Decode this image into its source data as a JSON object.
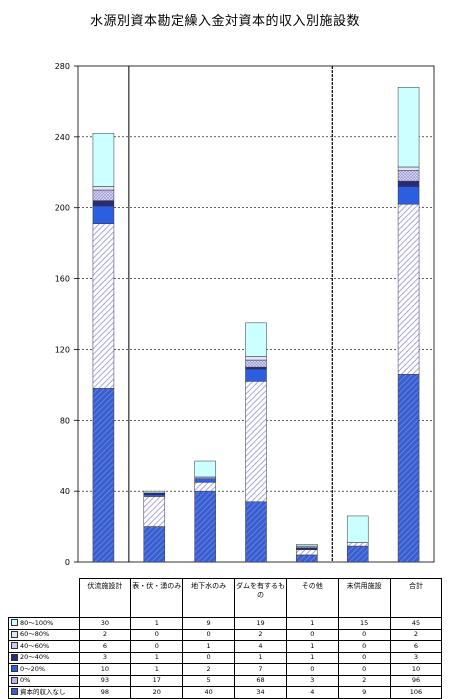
{
  "chart_data": {
    "type": "bar",
    "stacked": true,
    "title": "水源別資本勘定繰入金対資本的収入別施設数",
    "ylim": [
      0,
      280
    ],
    "yticks": [
      0,
      40,
      80,
      120,
      160,
      200,
      240,
      280
    ],
    "grid": true,
    "legend": "table-left",
    "categories": [
      "伏流施設計",
      "表・伏・湧のみ",
      "地下水のみ",
      "ダムを有するもの",
      "その他",
      "未供用施設",
      "合計"
    ],
    "series": [
      {
        "name": "資本的収入なし",
        "values": [
          98,
          20,
          40,
          34,
          4,
          9,
          106
        ],
        "color": "#3a5fcd",
        "fill": "hatch-dark"
      },
      {
        "name": "0%",
        "values": [
          93,
          17,
          5,
          68,
          3,
          2,
          96
        ],
        "color": "#b5b5e8",
        "fill": "hatch-light"
      },
      {
        "name": "0〜20%",
        "values": [
          10,
          1,
          2,
          7,
          0,
          0,
          10
        ],
        "color": "#2b5fe0",
        "fill": "solid"
      },
      {
        "name": "20〜40%",
        "values": [
          3,
          1,
          0,
          1,
          1,
          0,
          3
        ],
        "color": "#2a2a7a",
        "fill": "solid"
      },
      {
        "name": "40〜60%",
        "values": [
          6,
          0,
          1,
          4,
          1,
          0,
          6
        ],
        "color": "#ccccf2",
        "fill": "cross"
      },
      {
        "name": "60〜80%",
        "values": [
          2,
          0,
          0,
          2,
          0,
          0,
          2
        ],
        "color": "#e4e4f8",
        "fill": "solid"
      },
      {
        "name": "80〜100%",
        "values": [
          30,
          1,
          9,
          19,
          1,
          15,
          45
        ],
        "color": "#ccffff",
        "fill": "solid"
      }
    ]
  },
  "table_rows_order": [
    "80〜100%",
    "60〜80%",
    "40〜60%",
    "20〜40%",
    "0〜20%",
    "0%",
    "資本的収入なし"
  ]
}
